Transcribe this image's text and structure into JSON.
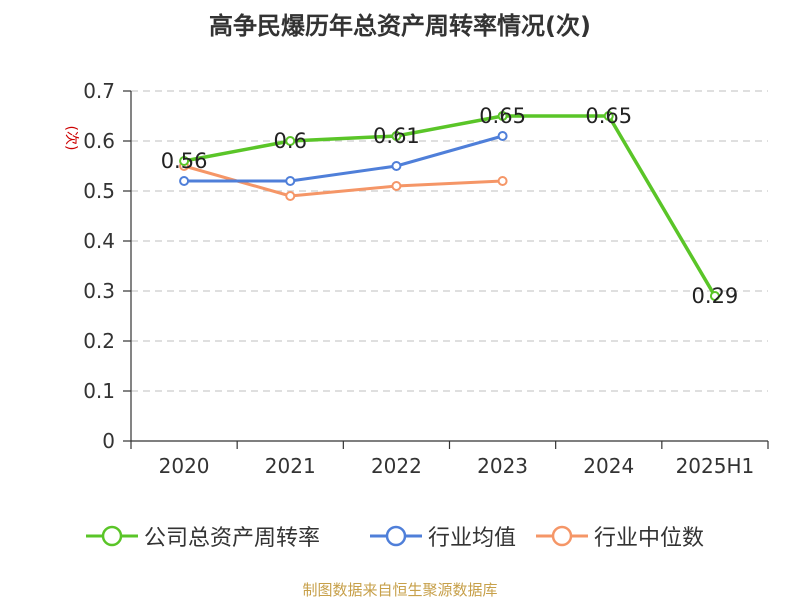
{
  "chart_data": {
    "type": "line",
    "title": "高争民爆历年总资产周转率情况(次)",
    "ylabel": "(次)",
    "xlabel": "",
    "categories": [
      "2020",
      "2021",
      "2022",
      "2023",
      "2024",
      "2025H1"
    ],
    "ylim": [
      0,
      0.7
    ],
    "yticks": [
      "0",
      "0.1",
      "0.2",
      "0.3",
      "0.4",
      "0.5",
      "0.6",
      "0.7"
    ],
    "grid": true,
    "legend_position": "bottom",
    "series": [
      {
        "name": "公司总资产周转率",
        "color": "#5ac528",
        "values": [
          0.56,
          0.6,
          0.61,
          0.65,
          0.65,
          0.29
        ],
        "labels": [
          "0.56",
          "0.6",
          "0.61",
          "0.65",
          "0.65",
          "0.29"
        ]
      },
      {
        "name": "行业均值",
        "color": "#4f7fd9",
        "values": [
          0.52,
          0.52,
          0.55,
          0.61,
          null,
          null
        ]
      },
      {
        "name": "行业中位数",
        "color": "#f59667",
        "values": [
          0.55,
          0.49,
          0.51,
          0.52,
          null,
          null
        ]
      }
    ]
  },
  "source_text": "制图数据来自恒生聚源数据库"
}
